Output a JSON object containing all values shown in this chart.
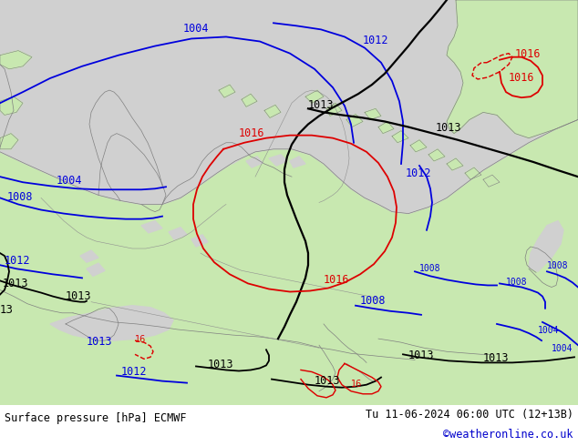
{
  "title_left": "Surface pressure [hPa] ECMWF",
  "title_right": "Tu 11-06-2024 06:00 UTC (12+13B)",
  "credit": "©weatheronline.co.uk",
  "land_color": "#c8e8b0",
  "sea_color": "#d0d0d0",
  "coast_color": "#808080",
  "border_color": "#909090",
  "blue": "#0000dd",
  "black": "#000000",
  "red": "#dd0000",
  "credit_color": "#0000cc",
  "lw_iso": 1.3,
  "fs_label": 8.5,
  "fs_footer": 8.5
}
